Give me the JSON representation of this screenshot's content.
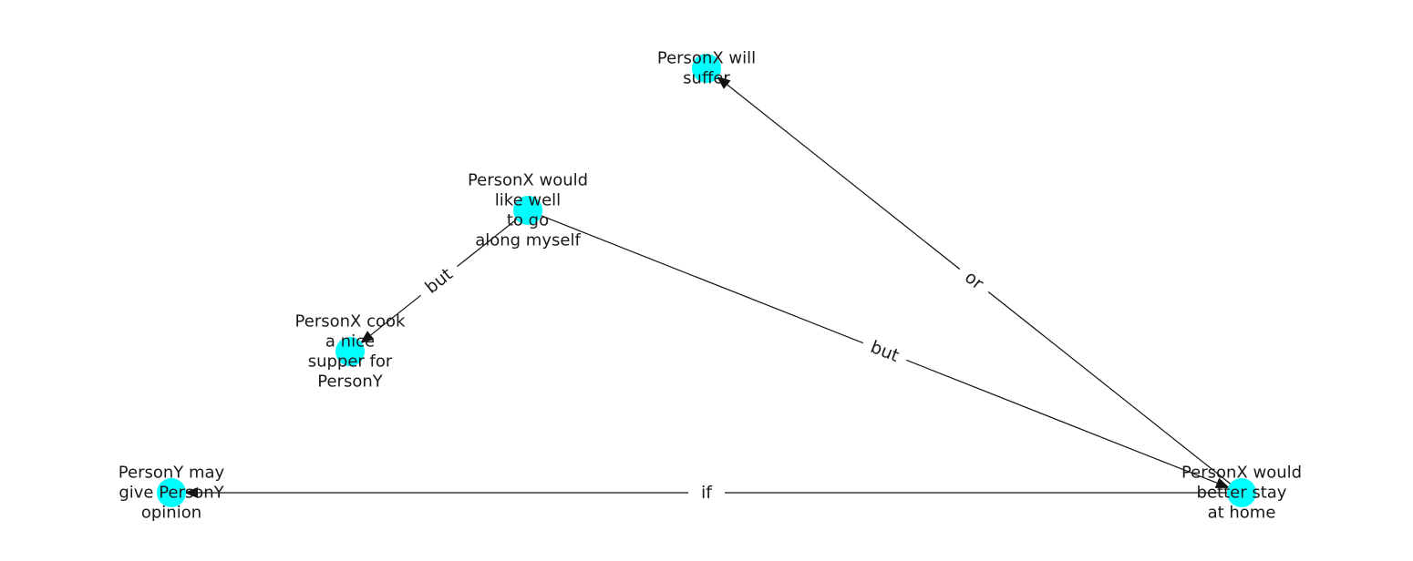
{
  "graph": {
    "node_color": "#00ffff",
    "edge_color": "#111111",
    "nodes": [
      {
        "id": "suffer",
        "label_lines": [
          "PersonX will",
          "suffer"
        ]
      },
      {
        "id": "go_along",
        "label_lines": [
          "PersonX would",
          "like well",
          "to go",
          "along myself"
        ]
      },
      {
        "id": "cook",
        "label_lines": [
          "PersonX cook",
          "a nice",
          "supper for",
          "PersonY"
        ]
      },
      {
        "id": "opinion",
        "label_lines": [
          "PersonY may",
          "give PersonY",
          "opinion"
        ]
      },
      {
        "id": "stay_home",
        "label_lines": [
          "PersonX would",
          "better stay",
          "at home"
        ]
      }
    ],
    "edges": [
      {
        "from": "go_along",
        "to": "cook",
        "label": "but"
      },
      {
        "from": "go_along",
        "to": "stay_home",
        "label": "but"
      },
      {
        "from": "stay_home",
        "to": "suffer",
        "label": "or"
      },
      {
        "from": "stay_home",
        "to": "opinion",
        "label": "if"
      }
    ]
  }
}
